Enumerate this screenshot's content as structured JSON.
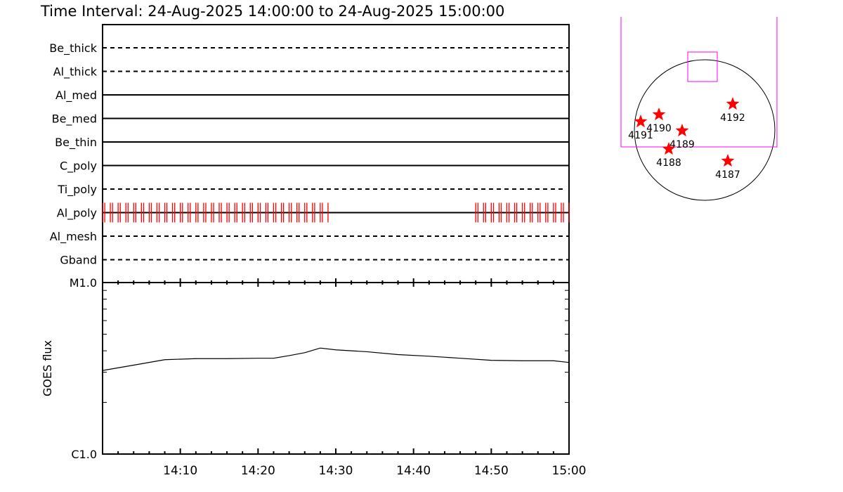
{
  "chart_data": [
    {
      "type": "timeline",
      "title": "Time Interval: 24-Aug-2025 14:00:00 to 24-Aug-2025 15:00:00",
      "xlim": [
        "14:00",
        "15:00"
      ],
      "filters": [
        {
          "name": "Be_thick",
          "style": "dashed"
        },
        {
          "name": "Al_thick",
          "style": "dashed"
        },
        {
          "name": "Al_med",
          "style": "solid"
        },
        {
          "name": "Be_med",
          "style": "solid"
        },
        {
          "name": "Be_thin",
          "style": "solid"
        },
        {
          "name": "C_poly",
          "style": "solid"
        },
        {
          "name": "Ti_poly",
          "style": "dashed"
        },
        {
          "name": "Al_poly",
          "style": "solid"
        },
        {
          "name": "Al_mesh",
          "style": "dashed"
        },
        {
          "name": "Gband",
          "style": "dashed"
        }
      ],
      "exposures": {
        "filter": "Al_poly",
        "color": "#ff0000",
        "segments": [
          {
            "start_min": 0.0,
            "end_min": 29.2
          },
          {
            "start_min": 48.0,
            "end_min": 60.0
          }
        ],
        "cadence_min": 1.0,
        "pair_offset_min": 0.28
      }
    },
    {
      "type": "line",
      "ylabel": "GOES flux",
      "yscale": "log",
      "ylim": [
        1e-06,
        1e-05
      ],
      "ytick_labels": [
        "C1.0",
        "M1.0"
      ],
      "xtick_labels": [
        "14:10",
        "14:20",
        "14:30",
        "14:40",
        "14:50",
        "15:00"
      ],
      "x_min": [
        0,
        4,
        8,
        12,
        16,
        20,
        22,
        24,
        26,
        28,
        30,
        34,
        38,
        42,
        46,
        50,
        54,
        58,
        60
      ],
      "y": [
        3.07e-06,
        3.3e-06,
        3.55e-06,
        3.6e-06,
        3.6e-06,
        3.62e-06,
        3.62e-06,
        3.75e-06,
        3.9e-06,
        4.15e-06,
        4.05e-06,
        3.95e-06,
        3.8e-06,
        3.72e-06,
        3.62e-06,
        3.52e-06,
        3.5e-06,
        3.5e-06,
        3.42e-06
      ]
    },
    {
      "type": "scatter",
      "description_text": "",
      "fov_color": "#ff00ff",
      "marker_color": "#ff0000",
      "active_regions": [
        {
          "label": "4191",
          "x": -0.91,
          "y": 0.12
        },
        {
          "label": "4190",
          "x": -0.65,
          "y": 0.22
        },
        {
          "label": "4189",
          "x": -0.32,
          "y": -0.01
        },
        {
          "label": "4192",
          "x": 0.4,
          "y": 0.37
        },
        {
          "label": "4188",
          "x": -0.51,
          "y": -0.27
        },
        {
          "label": "4187",
          "x": 0.33,
          "y": -0.44
        }
      ]
    }
  ]
}
